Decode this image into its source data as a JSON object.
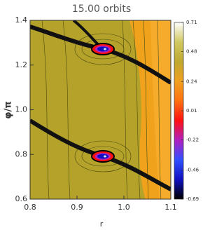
{
  "chart_data": {
    "type": "heatmap",
    "title": "15.00 orbits",
    "x_label": "r",
    "y_label": "φ/π",
    "xlim": [
      0.8,
      1.1
    ],
    "xticks": [
      0.8,
      0.9,
      {
        "value": 1,
        "label": "1.0"
      },
      1.1
    ],
    "ylim": [
      0.6,
      1.4
    ],
    "yticks": [
      0.6,
      0.8,
      {
        "value": 1,
        "label": "1.0"
      },
      1.2,
      1.4
    ],
    "clim": [
      -0.69,
      0.71
    ],
    "cticks": [
      0.71,
      0.48,
      0.24,
      0.01,
      -0.22,
      -0.46,
      -0.69
    ],
    "colormap": [
      "#000000",
      "#1010c0",
      "#3050ff",
      "#b020c0",
      "#ff1010",
      "#ff7010",
      "#f0a020",
      "#c0a830",
      "#d0c860",
      "#ffffff"
    ]
  }
}
